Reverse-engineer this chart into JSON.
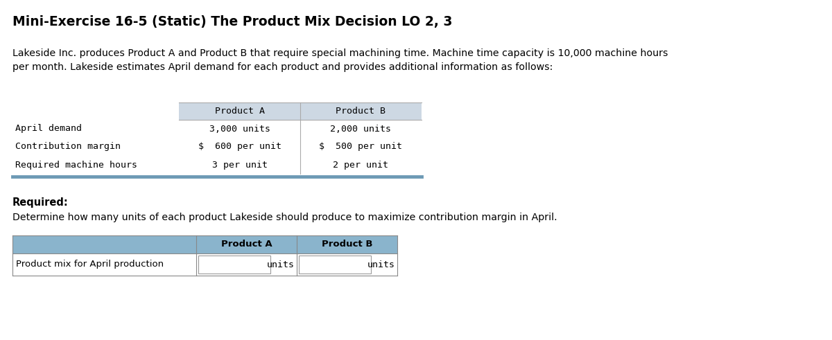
{
  "title": "Mini-Exercise 16-5 (Static) The Product Mix Decision LO 2, 3",
  "body_text": "Lakeside Inc. produces Product A and Product B that require special machining time. Machine time capacity is 10,000 machine hours\nper month. Lakeside estimates April demand for each product and provides additional information as follows:",
  "table1_rows": [
    [
      "April demand",
      "3,000 units",
      "2,000 units"
    ],
    [
      "Contribution margin",
      "$  600 per unit",
      "$  500 per unit"
    ],
    [
      "Required machine hours",
      "3 per unit",
      "2 per unit"
    ]
  ],
  "table1_header_bg": "#cdd8e3",
  "table1_bottom_bar_color": "#6d9ab5",
  "required_label": "Required:",
  "required_text": "Determine how many units of each product Lakeside should produce to maximize contribution margin in April.",
  "table2_header_bg": "#8ab4cc",
  "bg_color": "#ffffff",
  "font_color": "#000000",
  "mono_font": "DejaVu Sans Mono",
  "sans_font": "DejaVu Sans",
  "fig_w": 12.0,
  "fig_h": 4.91,
  "dpi": 100
}
